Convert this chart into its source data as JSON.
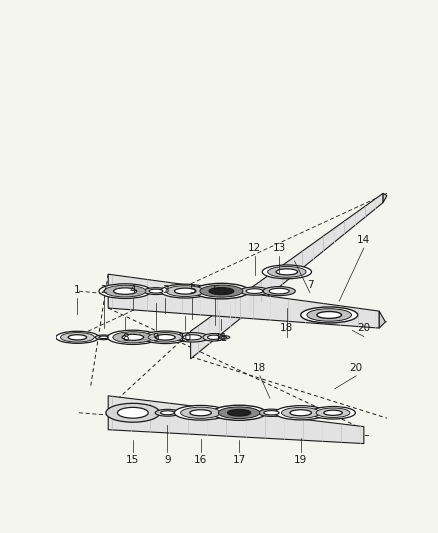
{
  "bg": "#f5f5f0",
  "lc": "#1a1a1a",
  "gray_light": "#d8d8d8",
  "gray_mid": "#aaaaaa",
  "gray_dark": "#666666",
  "gray_darker": "#333333",
  "shaft_fill": "#e0e0e0",
  "fig_w": 4.38,
  "fig_h": 5.33,
  "dpi": 100
}
